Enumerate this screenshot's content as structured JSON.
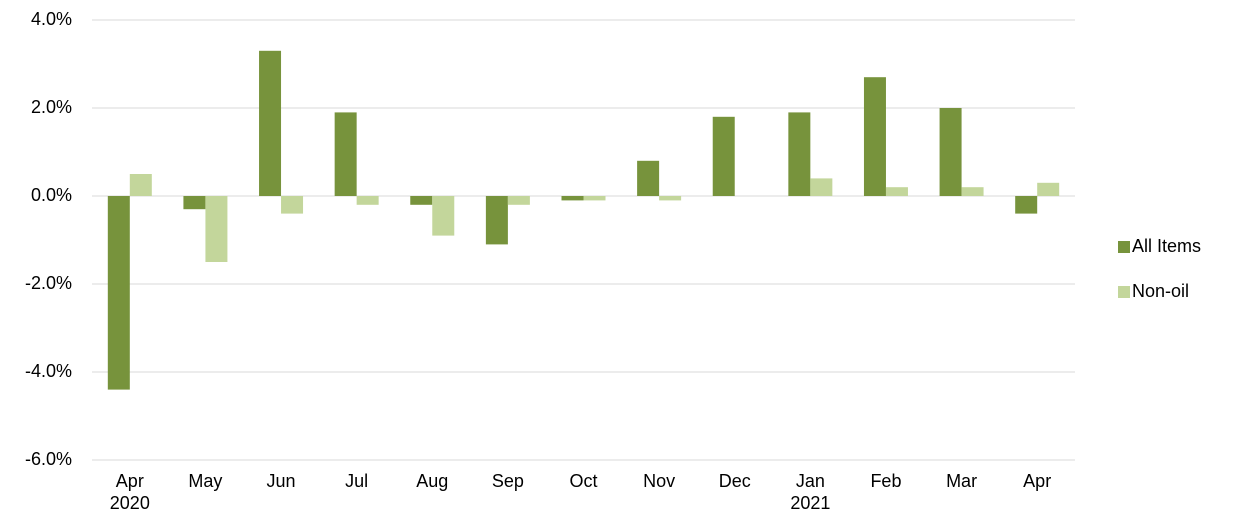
{
  "chart_data": {
    "type": "bar",
    "categories": [
      "Apr 2020",
      "May",
      "Jun",
      "Jul",
      "Aug",
      "Sep",
      "Oct",
      "Nov",
      "Dec",
      "Jan 2021",
      "Feb",
      "Mar",
      "Apr"
    ],
    "series": [
      {
        "name": "All Items",
        "color": "#77933c",
        "values": [
          -4.4,
          -0.3,
          3.3,
          1.9,
          -0.2,
          -1.1,
          -0.1,
          0.8,
          1.8,
          1.9,
          2.7,
          2.0,
          -0.4
        ]
      },
      {
        "name": "Non-oil",
        "color": "#c3d69b",
        "values": [
          0.5,
          -1.5,
          -0.4,
          -0.2,
          -0.9,
          -0.2,
          -0.1,
          -0.1,
          0.0,
          0.4,
          0.2,
          0.2,
          0.3
        ]
      }
    ],
    "ylim": [
      -6,
      4
    ],
    "yticks": [
      {
        "value": -6,
        "label": "-6.0%"
      },
      {
        "value": -4,
        "label": "-4.0%"
      },
      {
        "value": -2,
        "label": "-2.0%"
      },
      {
        "value": 0,
        "label": "0.0%"
      },
      {
        "value": 2,
        "label": "2.0%"
      },
      {
        "value": 4,
        "label": "4.0%"
      }
    ],
    "grid": true,
    "legend": "right"
  }
}
